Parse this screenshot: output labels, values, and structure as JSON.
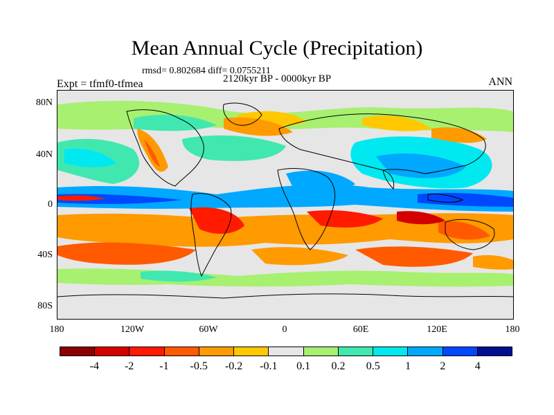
{
  "title": "Mean Annual Cycle (Precipitation)",
  "stats": "rmsd= 0.802684 diff= 0.0755211",
  "period": "2120kyr BP - 0000kyr BP",
  "experiment": "Expt = tfmf0-tfmea",
  "season": "ANN",
  "lat_labels": [
    "80N",
    "40N",
    "0",
    "40S",
    "80S"
  ],
  "lon_labels": [
    "180",
    "120W",
    "60W",
    "0",
    "60E",
    "120E",
    "180"
  ],
  "colorbar": {
    "labels": [
      "-4",
      "-2",
      "-1",
      "-0.5",
      "-0.2",
      "-0.1",
      "0.1",
      "0.2",
      "0.5",
      "1",
      "2",
      "4"
    ],
    "colors": [
      "#8b0000",
      "#d40000",
      "#ff1a00",
      "#ff5a00",
      "#ff9a00",
      "#ffc800",
      "#e6e6e6",
      "#a8f070",
      "#40e8b0",
      "#00e8f0",
      "#00a8ff",
      "#0048ff",
      "#001090"
    ]
  }
}
